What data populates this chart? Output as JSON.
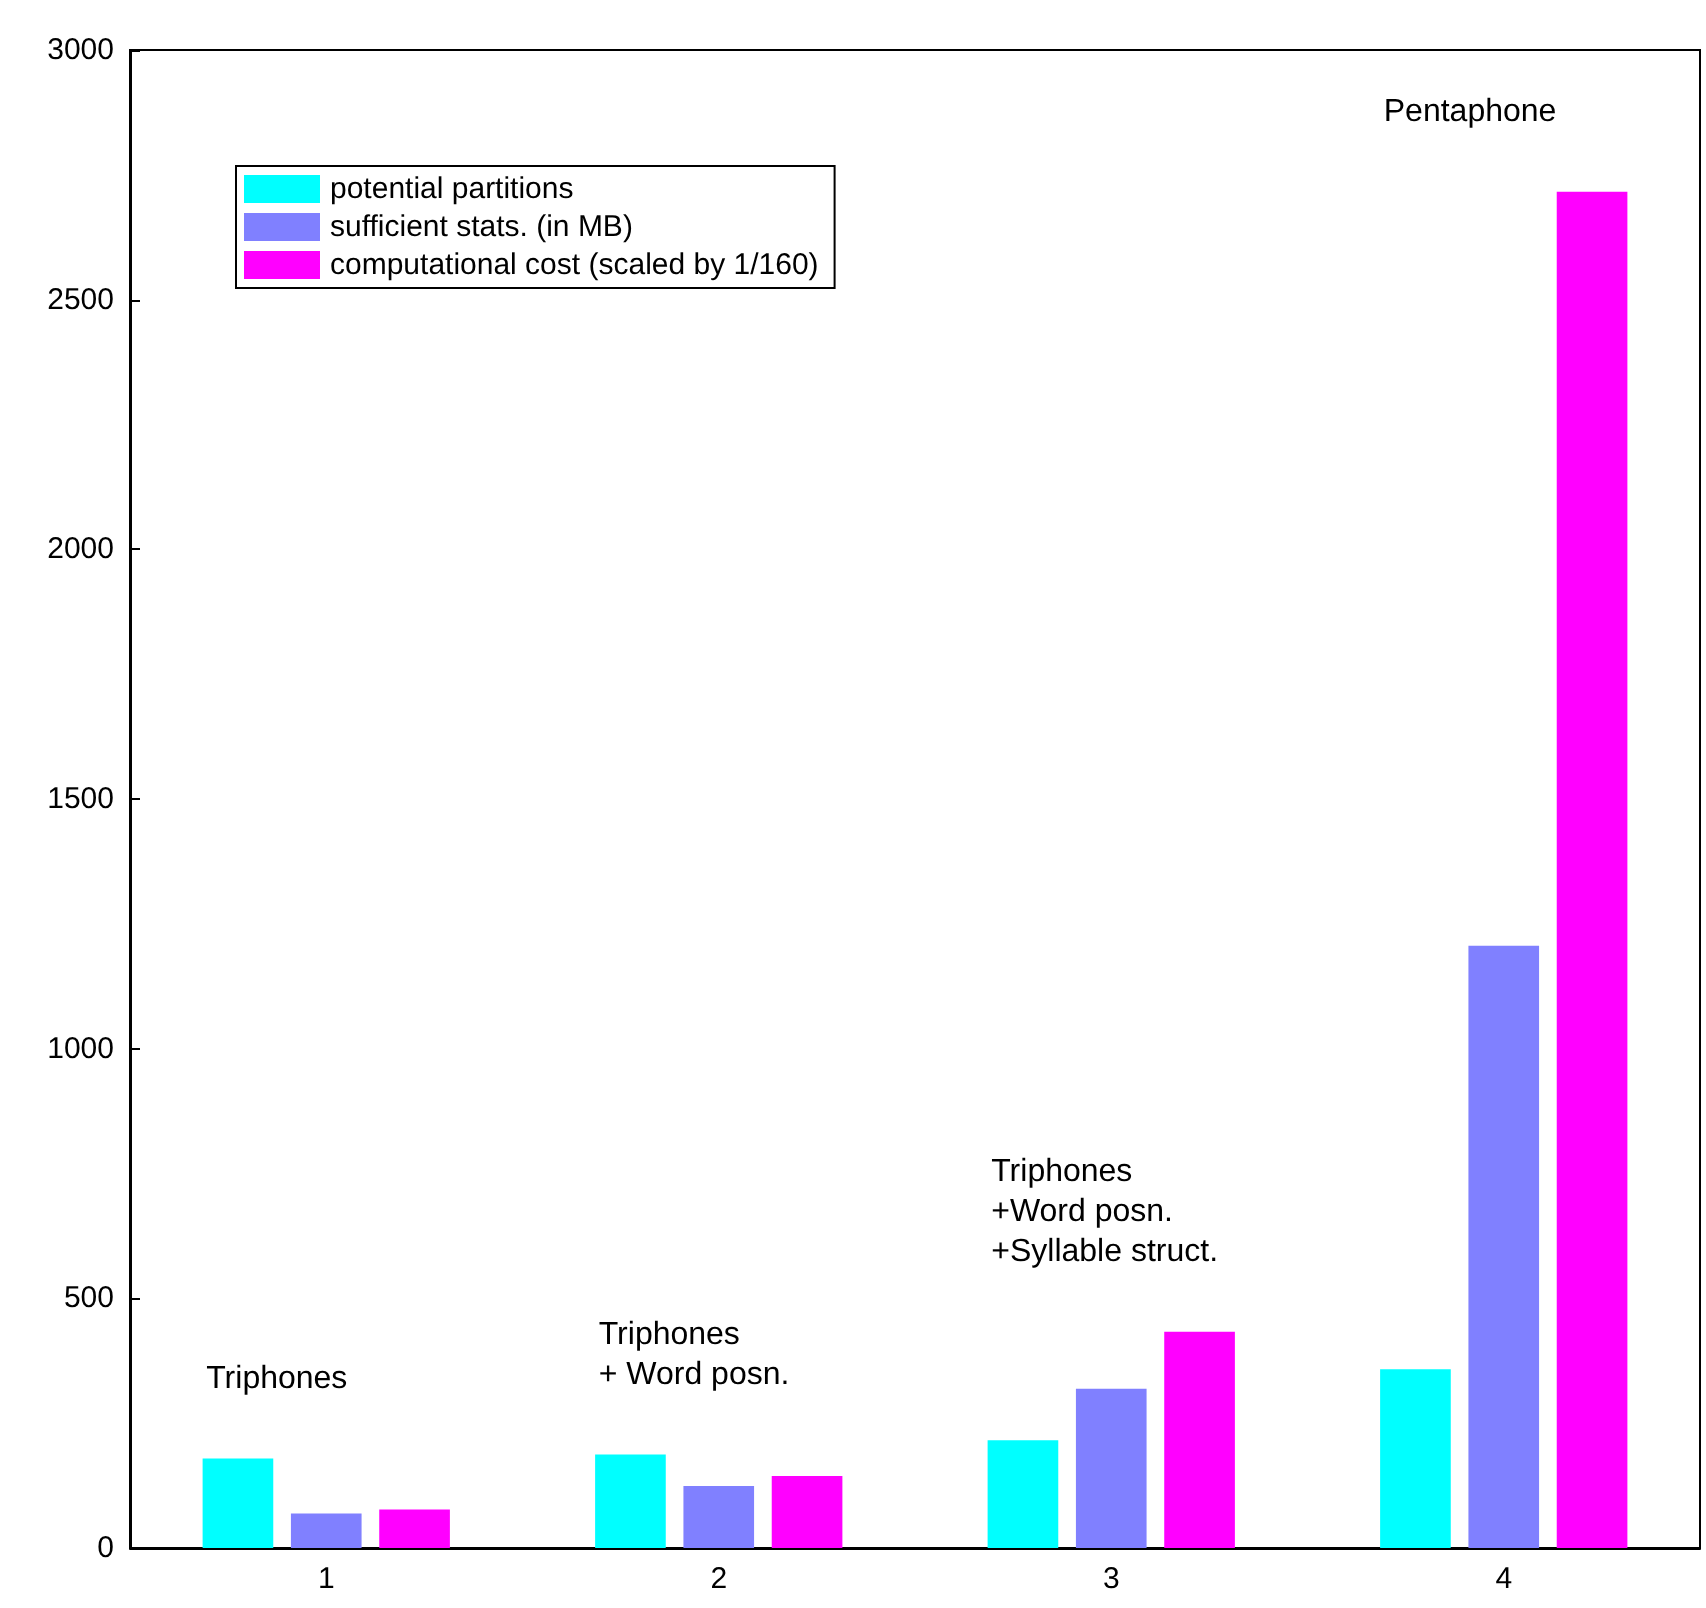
{
  "chart_data": {
    "type": "bar",
    "categories": [
      "1",
      "2",
      "3",
      "4"
    ],
    "series": [
      {
        "name": "potential partitions",
        "color": "#00ffff",
        "values": [
          179,
          187,
          216,
          358
        ]
      },
      {
        "name": "sufficient stats. (in MB)",
        "color": "#8080ff",
        "values": [
          69,
          124,
          319,
          1206
        ]
      },
      {
        "name": "computational cost (scaled by 1/160)",
        "color": "#ff00ff",
        "values": [
          77,
          144,
          433,
          2716
        ]
      }
    ],
    "ylim": [
      0,
      3000
    ],
    "yticks": [
      0,
      500,
      1000,
      1500,
      2000,
      2500,
      3000
    ],
    "grid": false,
    "legend": "top left",
    "annotations": [
      "Triphones",
      "Triphones\n+ Word posn.",
      "Triphones\n+Word posn.\n+Syllable struct.",
      "Pentaphone"
    ]
  }
}
